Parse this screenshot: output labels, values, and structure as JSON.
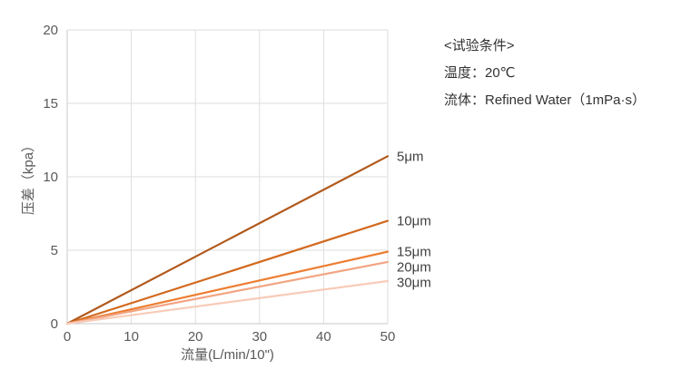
{
  "chart_data": {
    "type": "line",
    "title": "",
    "xlabel": "流量(L/min/10\")",
    "ylabel": "压差（kpa）",
    "xlim": [
      0,
      50
    ],
    "ylim": [
      0,
      20
    ],
    "x_ticks": [
      0,
      10,
      20,
      30,
      40,
      50
    ],
    "y_ticks": [
      0,
      5,
      10,
      15,
      20
    ],
    "grid": true,
    "legend_position": "right-end-labels",
    "series": [
      {
        "name": "5μm",
        "color": "#b2591c",
        "x": [
          0,
          50
        ],
        "values": [
          0,
          11.4
        ]
      },
      {
        "name": "10μm",
        "color": "#d2691e",
        "x": [
          0,
          50
        ],
        "values": [
          0,
          7.0
        ]
      },
      {
        "name": "15μm",
        "color": "#ed7d31",
        "x": [
          0,
          50
        ],
        "values": [
          0,
          4.9
        ]
      },
      {
        "name": "20μm",
        "color": "#f2a583",
        "x": [
          0,
          50
        ],
        "values": [
          0,
          4.2
        ]
      },
      {
        "name": "30μm",
        "color": "#f8cbb8",
        "x": [
          0,
          50
        ],
        "values": [
          0,
          2.9
        ]
      }
    ],
    "colors": {
      "grid": "#dedede",
      "axis": "#c8c8c8",
      "tick_label": "#595959",
      "axis_title": "#595959",
      "series_label": "#404040"
    }
  },
  "conditions": {
    "title": "<试验条件>",
    "temperature": "温度：20℃",
    "fluid": "流体：Refined Water（1mPa·s）"
  }
}
